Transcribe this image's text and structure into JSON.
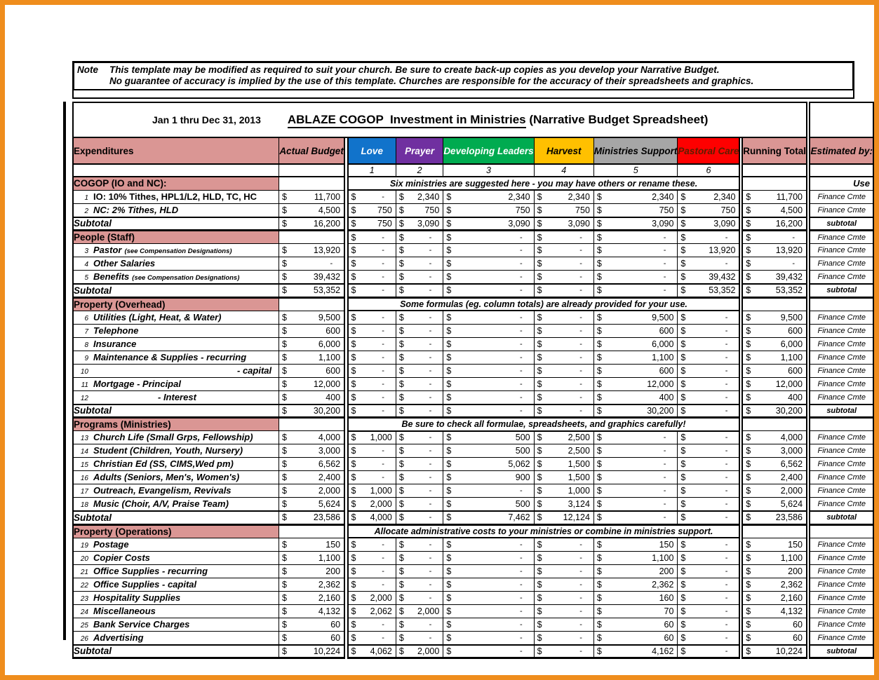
{
  "note": {
    "label": "Note",
    "line1": "This template may be modified as required to suit your church.  Be sure to create back-up copies as you develop your Narrative Budget.",
    "line2": "No guarantee of accuracy is implied by the use of this template.  Churches are responsible for the accuracy of their spreadsheets and graphics."
  },
  "title": {
    "date_range": "Jan 1 thru Dec 31, 2013",
    "main_underlined": "ABLAZE COGOP  Investment in Ministries",
    "main_suffix": " (Narrative Budget Spreadsheet)"
  },
  "currency_symbol": "$",
  "colors": {
    "frame_orange": "#ef8d1d",
    "header_pink": "#da9694"
  },
  "columns": {
    "expenditures": "Expenditures",
    "actual_budget": "Actual\nBudget",
    "running_total": "Running\nTotal",
    "estimated_by": "Estimated\nby:",
    "ministries": [
      {
        "label": "Love",
        "num": "1",
        "bg": "#1173cb",
        "fg": "#ffffff"
      },
      {
        "label": "Prayer",
        "num": "2",
        "bg": "#7030a0",
        "fg": "#ffffff"
      },
      {
        "label": "Developing\nLeaders",
        "num": "3",
        "bg": "#00ab50",
        "fg": "#ffffff"
      },
      {
        "label": "Harvest",
        "num": "4",
        "bg": "#ffc000",
        "fg": "#000000"
      },
      {
        "label": "Ministries\nSupport",
        "num": "5",
        "bg": "#a6a6a6",
        "fg": "#000000"
      },
      {
        "label": "Pastoral\nCare",
        "num": "6",
        "bg": "#fe0000",
        "fg": "#5a1e00"
      }
    ]
  },
  "sections": [
    {
      "header": "COGOP (IO and NC):",
      "note": "Six ministries are suggested here - you may have others or rename these.",
      "header_est": "Use",
      "rows": [
        {
          "num": "1",
          "label": "IO: 10% Tithes, HPL1/L2, HLD, TC, HC",
          "upright": true,
          "actual": "11,700",
          "cols": [
            "-",
            "2,340",
            "2,340",
            "2,340",
            "2,340",
            "2,340"
          ],
          "running": "11,700",
          "est": "Finance Cmte"
        },
        {
          "num": "2",
          "label": "NC: 2% Tithes, HLD",
          "actual": "4,500",
          "cols": [
            "750",
            "750",
            "750",
            "750",
            "750",
            "750"
          ],
          "running": "4,500",
          "est": "Finance Cmte"
        }
      ],
      "subtotal": {
        "label": "Subtotal",
        "actual": "16,200",
        "cols": [
          "750",
          "3,090",
          "3,090",
          "3,090",
          "3,090",
          "3,090"
        ],
        "running": "16,200",
        "est": "subtotal"
      }
    },
    {
      "header": "People (Staff)",
      "values": [
        "-",
        "-",
        "-",
        "-",
        "-",
        "-"
      ],
      "running": "-",
      "header_est": "Finance Cmte",
      "rows": [
        {
          "num": "3",
          "label": "Pastor",
          "sub": "(see Compensation Designations)",
          "actual": "13,920",
          "cols": [
            "-",
            "-",
            "-",
            "-",
            "-",
            "13,920"
          ],
          "running": "13,920",
          "est": "Finance Cmte"
        },
        {
          "num": "4",
          "label": "Other Salaries",
          "actual": "-",
          "cols": [
            "-",
            "-",
            "-",
            "-",
            "-",
            "-"
          ],
          "running": "-",
          "est": "Finance Cmte"
        },
        {
          "num": "5",
          "label": "Benefits",
          "sub": "(see Compensation Designations)",
          "actual": "39,432",
          "cols": [
            "-",
            "-",
            "-",
            "-",
            "-",
            "39,432"
          ],
          "running": "39,432",
          "est": "Finance Cmte"
        }
      ],
      "subtotal": {
        "label": "Subtotal",
        "actual": "53,352",
        "cols": [
          "-",
          "-",
          "-",
          "-",
          "-",
          "53,352"
        ],
        "running": "53,352",
        "est": "subtotal"
      }
    },
    {
      "header": "Property (Overhead)",
      "note": "Some formulas (eg. column totals) are already provided for your use.",
      "header_est": "",
      "rows": [
        {
          "num": "6",
          "label": "Utilities (Light, Heat, & Water)",
          "actual": "9,500",
          "cols": [
            "-",
            "-",
            "-",
            "-",
            "9,500",
            "-"
          ],
          "running": "9,500",
          "est": "Finance Cmte"
        },
        {
          "num": "7",
          "label": "Telephone",
          "actual": "600",
          "cols": [
            "-",
            "-",
            "-",
            "-",
            "600",
            "-"
          ],
          "running": "600",
          "est": "Finance Cmte"
        },
        {
          "num": "8",
          "label": "Insurance",
          "actual": "6,000",
          "cols": [
            "-",
            "-",
            "-",
            "-",
            "6,000",
            "-"
          ],
          "running": "6,000",
          "est": "Finance Cmte"
        },
        {
          "num": "9",
          "label": "Maintenance & Supplies - recurring",
          "actual": "1,100",
          "cols": [
            "-",
            "-",
            "-",
            "-",
            "1,100",
            "-"
          ],
          "running": "1,100",
          "est": "Finance Cmte"
        },
        {
          "num": "10",
          "label": "- capital",
          "indent": "large",
          "actual": "600",
          "cols": [
            "-",
            "-",
            "-",
            "-",
            "600",
            "-"
          ],
          "running": "600",
          "est": "Finance Cmte"
        },
        {
          "num": "11",
          "label": "Mortgage  - Principal",
          "actual": "12,000",
          "cols": [
            "-",
            "-",
            "-",
            "-",
            "12,000",
            "-"
          ],
          "running": "12,000",
          "est": "Finance Cmte"
        },
        {
          "num": "12",
          "label": "- Interest",
          "indent": "small",
          "actual": "400",
          "cols": [
            "-",
            "-",
            "-",
            "-",
            "400",
            "-"
          ],
          "running": "400",
          "est": "Finance Cmte"
        }
      ],
      "subtotal": {
        "label": "Subtotal",
        "actual": "30,200",
        "cols": [
          "-",
          "-",
          "-",
          "-",
          "30,200",
          "-"
        ],
        "running": "30,200",
        "est": "subtotal"
      }
    },
    {
      "header": "Programs (Ministries)",
      "note": "Be sure to check all formulae, spreadsheets, and graphics carefully!",
      "header_est": "",
      "rows": [
        {
          "num": "13",
          "label": "Church Life (Small Grps, Fellowship)",
          "actual": "4,000",
          "cols": [
            "1,000",
            "-",
            "500",
            "2,500",
            "-",
            "-"
          ],
          "running": "4,000",
          "est": "Finance Cmte"
        },
        {
          "num": "14",
          "label": "Student (Children, Youth, Nursery)",
          "actual": "3,000",
          "cols": [
            "-",
            "-",
            "500",
            "2,500",
            "-",
            "-"
          ],
          "running": "3,000",
          "est": "Finance Cmte"
        },
        {
          "num": "15",
          "label": "Christian Ed (SS, CIMS,Wed pm)",
          "actual": "6,562",
          "cols": [
            "-",
            "-",
            "5,062",
            "1,500",
            "-",
            "-"
          ],
          "running": "6,562",
          "est": "Finance Cmte"
        },
        {
          "num": "16",
          "label": "Adults (Seniors, Men's, Women's)",
          "actual": "2,400",
          "cols": [
            "-",
            "-",
            "900",
            "1,500",
            "-",
            "-"
          ],
          "running": "2,400",
          "est": "Finance Cmte"
        },
        {
          "num": "17",
          "label": "Outreach, Evangelism, Revivals",
          "actual": "2,000",
          "cols": [
            "1,000",
            "-",
            "-",
            "1,000",
            "-",
            "-"
          ],
          "running": "2,000",
          "est": "Finance Cmte"
        },
        {
          "num": "18",
          "label": "Music (Choir, A/V, Praise Team)",
          "actual": "5,624",
          "cols": [
            "2,000",
            "-",
            "500",
            "3,124",
            "-",
            "-"
          ],
          "running": "5,624",
          "est": "Finance Cmte"
        }
      ],
      "subtotal": {
        "label": "Subtotal",
        "actual": "23,586",
        "cols": [
          "4,000",
          "-",
          "7,462",
          "12,124",
          "-",
          "-"
        ],
        "running": "23,586",
        "est": "subtotal"
      }
    },
    {
      "header": "Property (Operations)",
      "note": "Allocate administrative costs to your ministries or combine in ministries support.",
      "header_est": "",
      "rows": [
        {
          "num": "19",
          "label": "Postage",
          "actual": "150",
          "cols": [
            "-",
            "-",
            "-",
            "-",
            "150",
            "-"
          ],
          "running": "150",
          "est": "Finance Cmte"
        },
        {
          "num": "20",
          "label": "Copier Costs",
          "actual": "1,100",
          "cols": [
            "-",
            "-",
            "-",
            "-",
            "1,100",
            "-"
          ],
          "running": "1,100",
          "est": "Finance Cmte"
        },
        {
          "num": "21",
          "label": "Office Supplies - recurring",
          "actual": "200",
          "cols": [
            "-",
            "-",
            "-",
            "-",
            "200",
            "-"
          ],
          "running": "200",
          "est": "Finance Cmte"
        },
        {
          "num": "22",
          "label": "Office Supplies - capital",
          "actual": "2,362",
          "cols": [
            "-",
            "-",
            "-",
            "-",
            "2,362",
            "-"
          ],
          "running": "2,362",
          "est": "Finance Cmte"
        },
        {
          "num": "23",
          "label": "Hospitality Supplies",
          "actual": "2,160",
          "cols": [
            "2,000",
            "-",
            "-",
            "-",
            "160",
            "-"
          ],
          "running": "2,160",
          "est": "Finance Cmte"
        },
        {
          "num": "24",
          "label": "Miscellaneous",
          "actual": "4,132",
          "cols": [
            "2,062",
            "2,000",
            "-",
            "-",
            "70",
            "-"
          ],
          "running": "4,132",
          "est": "Finance Cmte"
        },
        {
          "num": "25",
          "label": "Bank Service Charges",
          "actual": "60",
          "cols": [
            "-",
            "-",
            "-",
            "-",
            "60",
            "-"
          ],
          "running": "60",
          "est": "Finance Cmte"
        },
        {
          "num": "26",
          "label": "Advertising",
          "actual": "60",
          "cols": [
            "-",
            "-",
            "-",
            "-",
            "60",
            "-"
          ],
          "running": "60",
          "est": "Finance Cmte"
        }
      ],
      "subtotal": {
        "label": "Subtotal",
        "actual": "10,224",
        "cols": [
          "4,062",
          "2,000",
          "-",
          "-",
          "4,162",
          "-"
        ],
        "running": "10,224",
        "est": "subtotal"
      }
    }
  ]
}
